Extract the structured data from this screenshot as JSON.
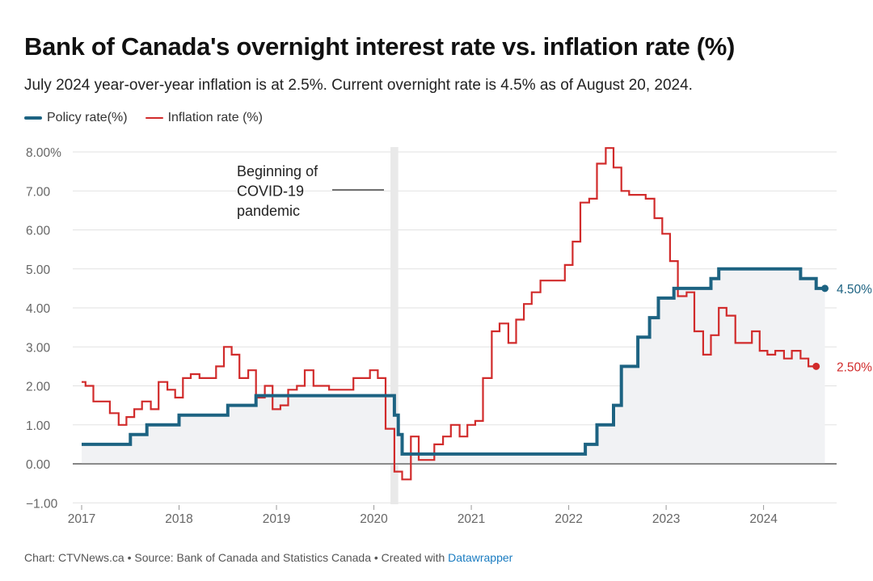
{
  "header": {
    "title": "Bank of Canada's overnight interest rate vs. inflation rate (%)",
    "subtitle": "July 2024 year-over-year inflation is at 2.5%. Current overnight rate is 4.5% as of August 20, 2024."
  },
  "legend": {
    "policy_label": "Policy rate(%)",
    "inflation_label": "Inflation rate (%)"
  },
  "colors": {
    "policy": "#1d6382",
    "inflation": "#d12b2b",
    "area": "#f1f2f4",
    "grid": "#e2e2e2",
    "covid_band": "#e9e9e9"
  },
  "footer": {
    "prefix": "Chart: CTVNews.ca • Source: Bank of Canada and Statistics Canada • Created with ",
    "link": "Datawrapper"
  },
  "chart_data": {
    "type": "line",
    "title": "Bank of Canada's overnight interest rate vs. inflation rate (%)",
    "xlabel": "",
    "ylabel": "",
    "xlim": [
      2017.0,
      2024.75
    ],
    "ylim": [
      -1.0,
      8.0
    ],
    "x_ticks": [
      2017,
      2018,
      2019,
      2020,
      2021,
      2022,
      2023,
      2024
    ],
    "x_tick_labels": [
      "2017",
      "2018",
      "2019",
      "2020",
      "2021",
      "2022",
      "2023",
      "2024"
    ],
    "y_ticks": [
      -1,
      0,
      1,
      2,
      3,
      4,
      5,
      6,
      7,
      8
    ],
    "y_tick_labels": [
      "−1.00",
      "0.00",
      "1.00",
      "2.00",
      "3.00",
      "4.00",
      "5.00",
      "6.00",
      "7.00",
      "8.00%"
    ],
    "step": true,
    "series": [
      {
        "name": "Policy rate(%)",
        "points": [
          [
            2017.0,
            0.5
          ],
          [
            2017.5,
            0.75
          ],
          [
            2017.67,
            1.0
          ],
          [
            2018.0,
            1.25
          ],
          [
            2018.5,
            1.5
          ],
          [
            2018.79,
            1.75
          ],
          [
            2020.21,
            1.25
          ],
          [
            2020.25,
            0.75
          ],
          [
            2020.29,
            0.25
          ],
          [
            2022.17,
            0.5
          ],
          [
            2022.29,
            1.0
          ],
          [
            2022.46,
            1.5
          ],
          [
            2022.54,
            2.5
          ],
          [
            2022.71,
            3.25
          ],
          [
            2022.83,
            3.75
          ],
          [
            2022.92,
            4.25
          ],
          [
            2023.08,
            4.5
          ],
          [
            2023.46,
            4.75
          ],
          [
            2023.54,
            5.0
          ],
          [
            2024.38,
            4.75
          ],
          [
            2024.54,
            4.5
          ],
          [
            2024.63,
            4.5
          ]
        ]
      },
      {
        "name": "Inflation rate (%)",
        "points": [
          [
            2017.0,
            2.1
          ],
          [
            2017.04,
            2.0
          ],
          [
            2017.12,
            1.6
          ],
          [
            2017.29,
            1.3
          ],
          [
            2017.38,
            1.0
          ],
          [
            2017.46,
            1.2
          ],
          [
            2017.54,
            1.4
          ],
          [
            2017.62,
            1.6
          ],
          [
            2017.71,
            1.4
          ],
          [
            2017.79,
            2.1
          ],
          [
            2017.88,
            1.9
          ],
          [
            2017.96,
            1.7
          ],
          [
            2018.04,
            2.2
          ],
          [
            2018.12,
            2.3
          ],
          [
            2018.21,
            2.2
          ],
          [
            2018.38,
            2.5
          ],
          [
            2018.46,
            3.0
          ],
          [
            2018.54,
            2.8
          ],
          [
            2018.62,
            2.2
          ],
          [
            2018.71,
            2.4
          ],
          [
            2018.79,
            1.7
          ],
          [
            2018.88,
            2.0
          ],
          [
            2018.96,
            1.4
          ],
          [
            2019.04,
            1.5
          ],
          [
            2019.12,
            1.9
          ],
          [
            2019.21,
            2.0
          ],
          [
            2019.29,
            2.4
          ],
          [
            2019.38,
            2.0
          ],
          [
            2019.54,
            1.9
          ],
          [
            2019.79,
            2.2
          ],
          [
            2019.96,
            2.4
          ],
          [
            2020.04,
            2.2
          ],
          [
            2020.12,
            0.9
          ],
          [
            2020.21,
            -0.2
          ],
          [
            2020.29,
            -0.4
          ],
          [
            2020.38,
            0.7
          ],
          [
            2020.46,
            0.1
          ],
          [
            2020.62,
            0.5
          ],
          [
            2020.71,
            0.7
          ],
          [
            2020.79,
            1.0
          ],
          [
            2020.88,
            0.7
          ],
          [
            2020.96,
            1.0
          ],
          [
            2021.04,
            1.1
          ],
          [
            2021.12,
            2.2
          ],
          [
            2021.21,
            3.4
          ],
          [
            2021.29,
            3.6
          ],
          [
            2021.38,
            3.1
          ],
          [
            2021.46,
            3.7
          ],
          [
            2021.54,
            4.1
          ],
          [
            2021.62,
            4.4
          ],
          [
            2021.71,
            4.7
          ],
          [
            2021.96,
            5.1
          ],
          [
            2022.04,
            5.7
          ],
          [
            2022.12,
            6.7
          ],
          [
            2022.21,
            6.8
          ],
          [
            2022.29,
            7.7
          ],
          [
            2022.38,
            8.1
          ],
          [
            2022.46,
            7.6
          ],
          [
            2022.54,
            7.0
          ],
          [
            2022.62,
            6.9
          ],
          [
            2022.79,
            6.8
          ],
          [
            2022.88,
            6.3
          ],
          [
            2022.96,
            5.9
          ],
          [
            2023.04,
            5.2
          ],
          [
            2023.12,
            4.3
          ],
          [
            2023.21,
            4.4
          ],
          [
            2023.29,
            3.4
          ],
          [
            2023.38,
            2.8
          ],
          [
            2023.46,
            3.3
          ],
          [
            2023.54,
            4.0
          ],
          [
            2023.62,
            3.8
          ],
          [
            2023.71,
            3.1
          ],
          [
            2023.88,
            3.4
          ],
          [
            2023.96,
            2.9
          ],
          [
            2024.04,
            2.8
          ],
          [
            2024.12,
            2.9
          ],
          [
            2024.21,
            2.7
          ],
          [
            2024.29,
            2.9
          ],
          [
            2024.38,
            2.7
          ],
          [
            2024.46,
            2.5
          ],
          [
            2024.54,
            2.5
          ]
        ]
      }
    ],
    "annotations": [
      {
        "text_lines": [
          "Beginning of",
          "COVID-19",
          "pandemic"
        ],
        "x_range": [
          2020.17,
          2020.25
        ]
      }
    ],
    "end_labels": [
      {
        "series": "Policy rate(%)",
        "x": 2024.63,
        "value": 4.5,
        "text": "4.50%"
      },
      {
        "series": "Inflation rate (%)",
        "x": 2024.54,
        "value": 2.5,
        "text": "2.50%"
      }
    ]
  }
}
